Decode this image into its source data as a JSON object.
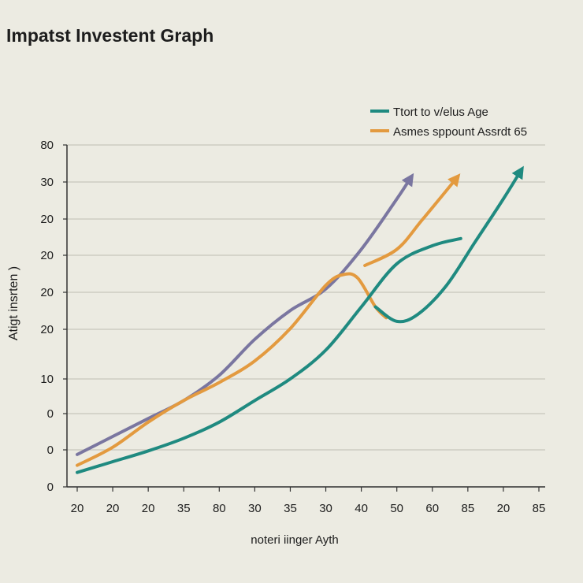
{
  "chart_data": {
    "type": "line",
    "title": "Impatst Investent Graph",
    "xlabel": "noteri iinger Ayth",
    "ylabel": "Atigt insrten )",
    "x_tick_labels": [
      "20",
      "20",
      "20",
      "35",
      "80",
      "30",
      "35",
      "30",
      "40",
      "50",
      "60",
      "85",
      "20",
      "85"
    ],
    "y_tick_labels": [
      "0",
      "0",
      "0",
      "10",
      "20",
      "20",
      "20",
      "20",
      "30",
      "80"
    ],
    "x_range": [
      0,
      13
    ],
    "y_range": [
      0,
      9.5
    ],
    "grid": "horizontal",
    "legend_position": "top-right",
    "legend": [
      {
        "label": "Ttort to v/elus Age",
        "color": "#1f8a80"
      },
      {
        "label": "Asmes sppount Assrdt 65",
        "color": "#e39a3f"
      }
    ],
    "series": [
      {
        "name": "purple",
        "color": "#7a76a0",
        "arrow": true,
        "points": [
          [
            0,
            0.9
          ],
          [
            1,
            1.4
          ],
          [
            2,
            1.9
          ],
          [
            3,
            2.4
          ],
          [
            4,
            3.1
          ],
          [
            5,
            4.1
          ],
          [
            6,
            4.9
          ],
          [
            7,
            5.5
          ],
          [
            8,
            6.6
          ],
          [
            9,
            8.0
          ],
          [
            9.4,
            8.6
          ]
        ]
      },
      {
        "name": "orange",
        "color": "#e39a3f",
        "arrow": false,
        "points": [
          [
            0,
            0.6
          ],
          [
            1,
            1.1
          ],
          [
            2,
            1.8
          ],
          [
            3,
            2.4
          ],
          [
            4,
            2.9
          ],
          [
            5,
            3.5
          ],
          [
            6,
            4.4
          ],
          [
            7,
            5.6
          ],
          [
            7.5,
            5.9
          ],
          [
            7.9,
            5.8
          ],
          [
            8.4,
            5.0
          ],
          [
            8.7,
            4.7
          ]
        ]
      },
      {
        "name": "orange-segment",
        "color": "#e39a3f",
        "arrow": true,
        "points": [
          [
            8.1,
            6.15
          ],
          [
            9.0,
            6.6
          ],
          [
            9.7,
            7.4
          ],
          [
            10.7,
            8.6
          ]
        ]
      },
      {
        "name": "teal-upper",
        "color": "#1f8a80",
        "arrow": false,
        "points": [
          [
            0,
            0.4
          ],
          [
            1,
            0.7
          ],
          [
            2,
            1.0
          ],
          [
            3,
            1.35
          ],
          [
            4,
            1.8
          ],
          [
            5,
            2.4
          ],
          [
            6,
            3.0
          ],
          [
            7,
            3.8
          ],
          [
            8,
            5.0
          ],
          [
            9,
            6.2
          ],
          [
            10,
            6.7
          ],
          [
            10.8,
            6.9
          ]
        ]
      },
      {
        "name": "teal-lower",
        "color": "#1f8a80",
        "arrow": true,
        "points": [
          [
            8.4,
            5.0
          ],
          [
            9.0,
            4.6
          ],
          [
            9.6,
            4.8
          ],
          [
            10.4,
            5.6
          ],
          [
            11.2,
            6.8
          ],
          [
            12.0,
            8.0
          ],
          [
            12.5,
            8.8
          ]
        ]
      }
    ]
  }
}
